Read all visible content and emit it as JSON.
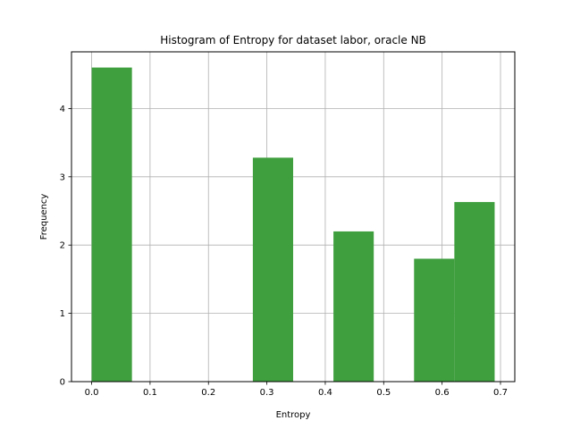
{
  "chart_data": {
    "type": "bar",
    "title": "Histogram of Entropy for dataset labor, oracle NB",
    "xlabel": "Entropy",
    "ylabel": "Frequency",
    "xlim": [
      -0.0345,
      0.7245
    ],
    "ylim": [
      0,
      4.83
    ],
    "xticks": [
      0.0,
      0.1,
      0.2,
      0.3,
      0.4,
      0.5,
      0.6,
      0.7
    ],
    "xtick_labels": [
      "0.0",
      "0.1",
      "0.2",
      "0.3",
      "0.4",
      "0.5",
      "0.6",
      "0.7"
    ],
    "yticks": [
      0,
      1,
      2,
      3,
      4
    ],
    "ytick_labels": [
      "0",
      "1",
      "2",
      "3",
      "4"
    ],
    "grid": true,
    "bar_color": "#3f9f3f",
    "bins": [
      {
        "start": 0.0,
        "end": 0.069,
        "value": 4.6
      },
      {
        "start": 0.069,
        "end": 0.138,
        "value": 0
      },
      {
        "start": 0.138,
        "end": 0.207,
        "value": 0
      },
      {
        "start": 0.207,
        "end": 0.276,
        "value": 0
      },
      {
        "start": 0.276,
        "end": 0.345,
        "value": 3.28
      },
      {
        "start": 0.345,
        "end": 0.414,
        "value": 0
      },
      {
        "start": 0.414,
        "end": 0.483,
        "value": 2.2
      },
      {
        "start": 0.483,
        "end": 0.552,
        "value": 0
      },
      {
        "start": 0.552,
        "end": 0.621,
        "value": 1.8
      },
      {
        "start": 0.621,
        "end": 0.69,
        "value": 2.63
      }
    ]
  }
}
